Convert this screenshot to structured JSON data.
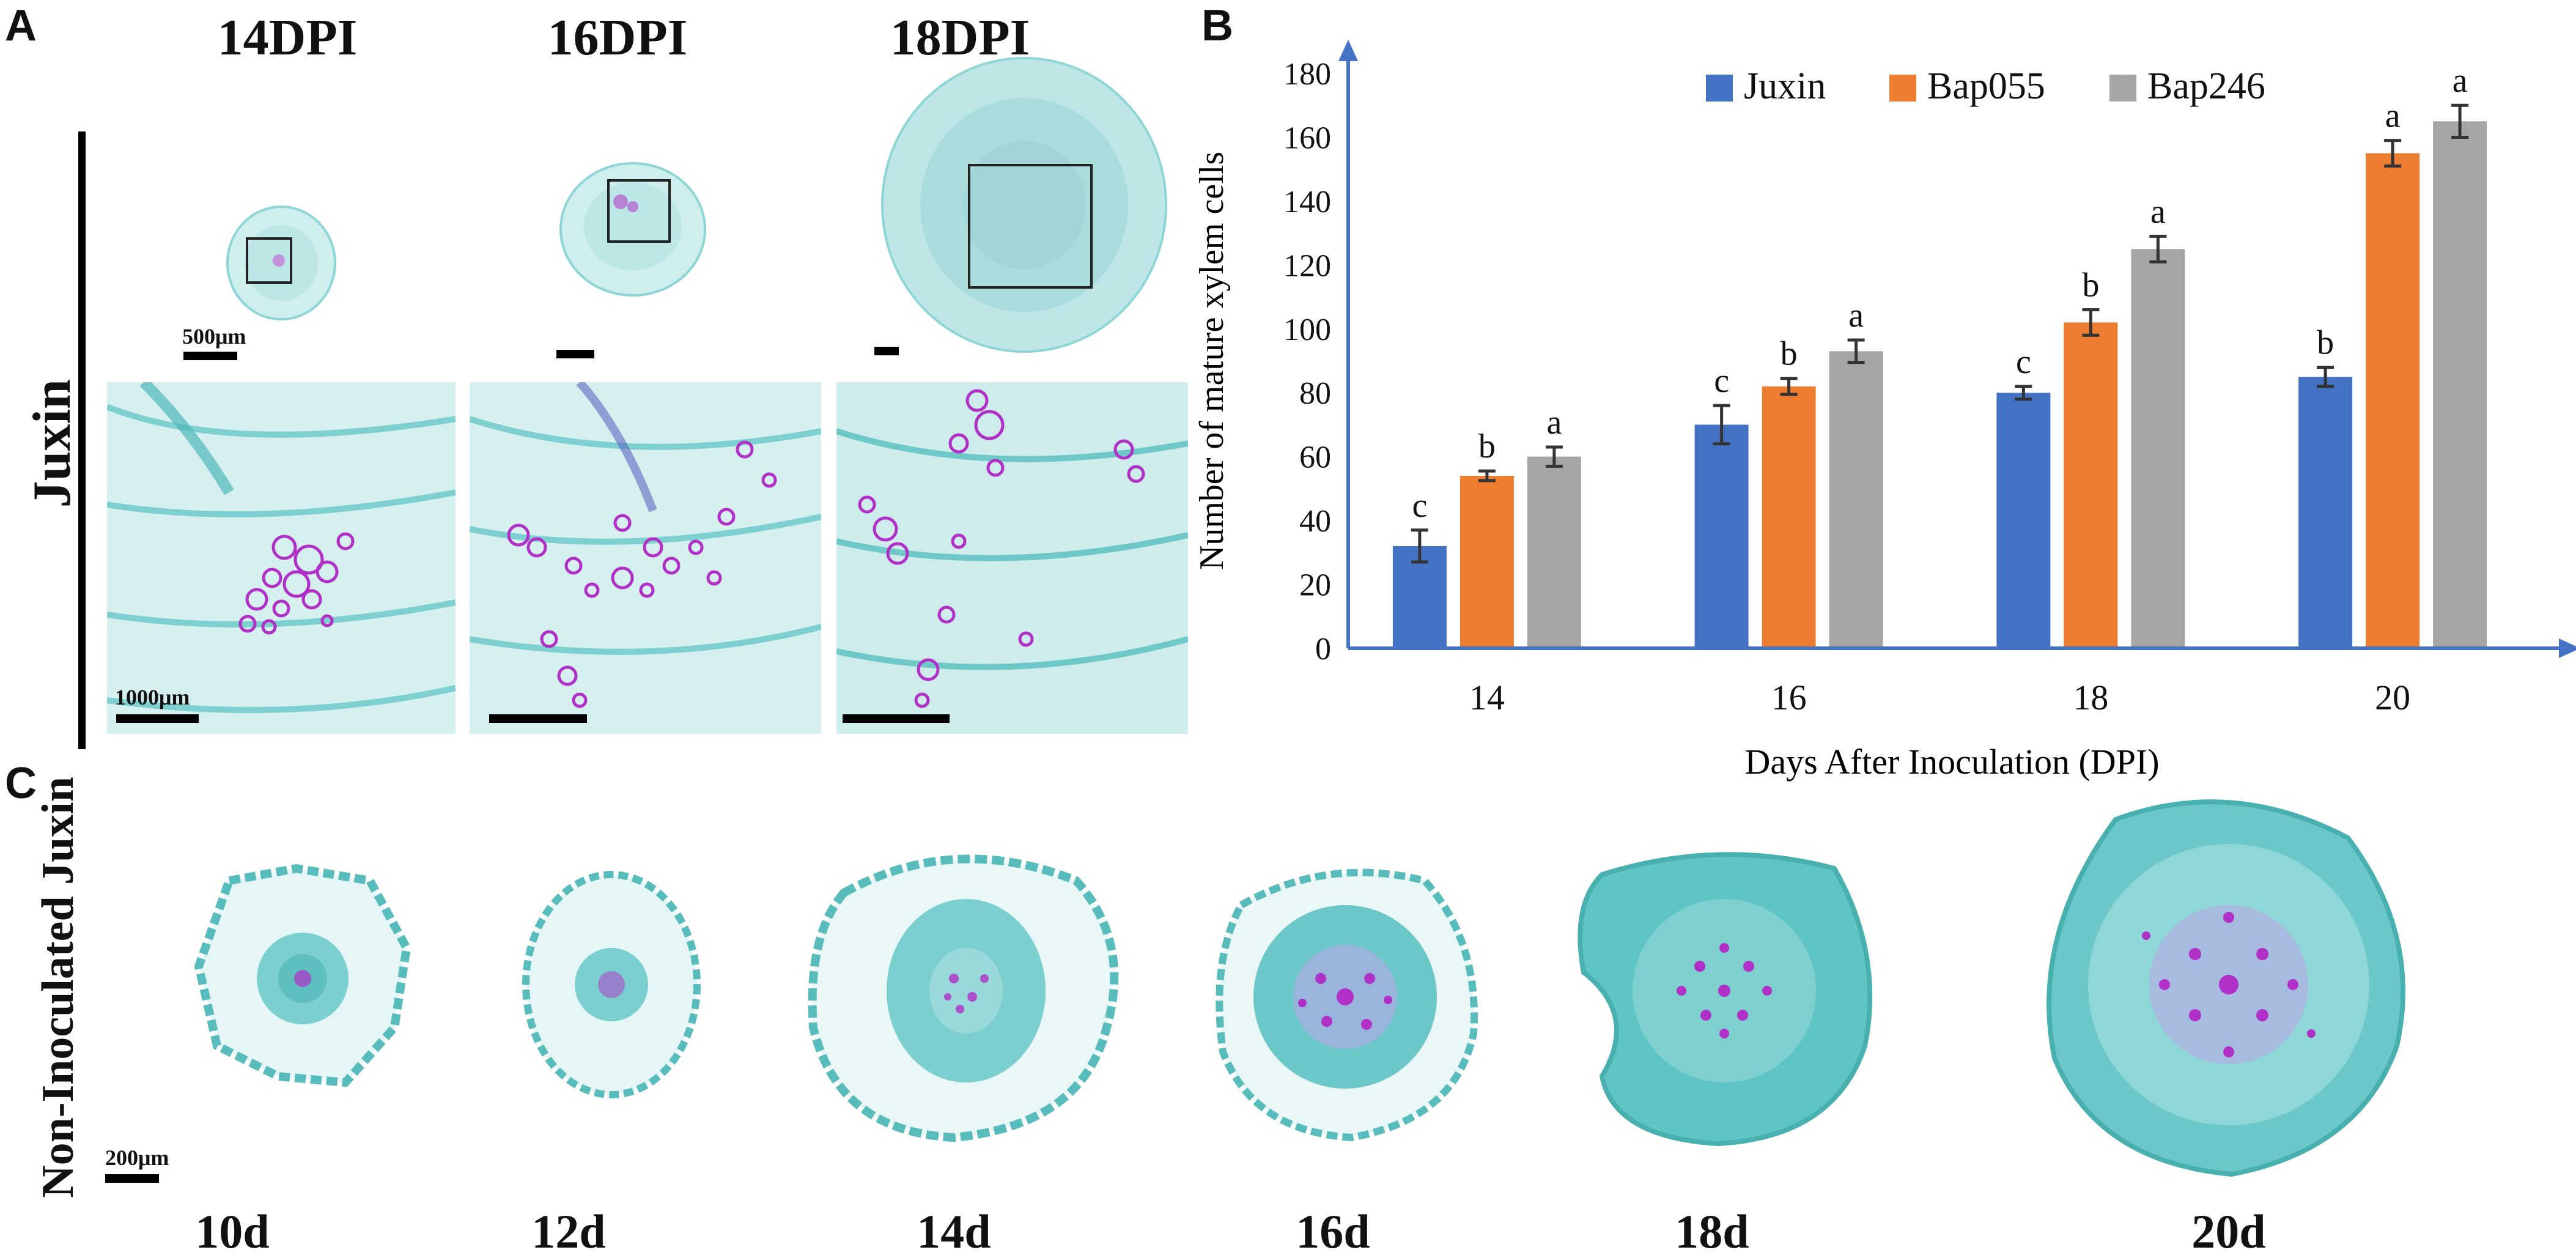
{
  "panels": {
    "a": "A",
    "b": "B",
    "c": "C"
  },
  "panel_a": {
    "columns": [
      "14DPI",
      "16DPI",
      "18DPI"
    ],
    "row_label": "Juxin",
    "scale_top": "500μm",
    "scale_bottom": "1000μm"
  },
  "panel_c": {
    "row_label": "Non-Inoculated Juxin",
    "scale": "200μm",
    "days": [
      "10d",
      "12d",
      "14d",
      "16d",
      "18d",
      "20d"
    ]
  },
  "colors": {
    "juxin": "#4472C4",
    "bap055": "#ED7D31",
    "bap246": "#A5A5A5",
    "axis": "#4472C4",
    "stain_bg": "#d9f1f1",
    "stain_tissue": "#5fc4c4",
    "stain_xylem": "#b030c8"
  },
  "chart_data": {
    "type": "bar",
    "title": "",
    "xlabel": "Days After Inoculation (DPI)",
    "ylabel": "Number of mature xylem cells",
    "categories": [
      "14",
      "16",
      "18",
      "20"
    ],
    "ylim": [
      0,
      180
    ],
    "yticks": [
      0,
      20,
      40,
      60,
      80,
      100,
      120,
      140,
      160,
      180
    ],
    "legend_position": "top",
    "series": [
      {
        "name": "Juxin",
        "values": [
          32,
          70,
          80,
          85
        ],
        "errors": [
          5,
          6,
          2,
          3
        ],
        "letters": [
          "c",
          "c",
          "c",
          "b"
        ]
      },
      {
        "name": "Bap055",
        "values": [
          54,
          82,
          102,
          155
        ],
        "errors": [
          1.5,
          2.5,
          4,
          4
        ],
        "letters": [
          "b",
          "b",
          "b",
          "a"
        ]
      },
      {
        "name": "Bap246",
        "values": [
          60,
          93,
          125,
          165
        ],
        "errors": [
          3,
          3.5,
          4,
          5
        ],
        "letters": [
          "a",
          "a",
          "a",
          "a"
        ]
      }
    ]
  }
}
